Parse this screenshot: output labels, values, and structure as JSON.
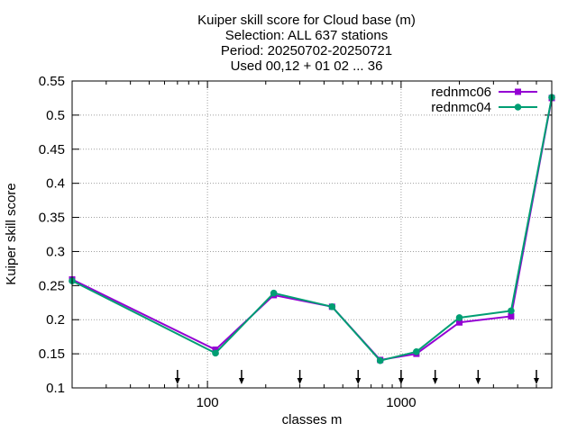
{
  "chart_data": {
    "type": "line",
    "title_lines": [
      "Kuiper skill score  for Cloud base (m)",
      "Selection: ALL    637 stations",
      "Period: 20250702-20250721",
      "Used 00,12 + 01 02 ... 36"
    ],
    "xlabel": "classes m",
    "ylabel": "Kuiper skill score",
    "x_scale": "log",
    "xlim": [
      20,
      6000
    ],
    "ylim": [
      0.1,
      0.55
    ],
    "x_ticks": [
      {
        "value": 100,
        "label": "100"
      },
      {
        "value": 1000,
        "label": "1000"
      }
    ],
    "y_ticks": [
      {
        "value": 0.1,
        "label": "0.1"
      },
      {
        "value": 0.15,
        "label": "0.15"
      },
      {
        "value": 0.2,
        "label": "0.2"
      },
      {
        "value": 0.25,
        "label": "0.25"
      },
      {
        "value": 0.3,
        "label": "0.3"
      },
      {
        "value": 0.35,
        "label": "0.35"
      },
      {
        "value": 0.4,
        "label": "0.4"
      },
      {
        "value": 0.45,
        "label": "0.45"
      },
      {
        "value": 0.5,
        "label": "0.5"
      },
      {
        "value": 0.55,
        "label": "0.55"
      }
    ],
    "grid": true,
    "legend_position": "top-right",
    "x": [
      20,
      110,
      220,
      440,
      780,
      1200,
      2000,
      3700,
      6000
    ],
    "series": [
      {
        "name": "rednmc06",
        "color": "#9400d3",
        "marker": "square",
        "values": [
          0.259,
          0.156,
          0.236,
          0.219,
          0.141,
          0.15,
          0.196,
          0.205,
          0.525
        ]
      },
      {
        "name": "rednmc04",
        "color": "#009e73",
        "marker": "circle",
        "values": [
          0.257,
          0.151,
          0.239,
          0.219,
          0.14,
          0.153,
          0.203,
          0.213,
          0.526
        ]
      }
    ],
    "arrow_markers_x": [
      70,
      150,
      300,
      600,
      1000,
      1500,
      2500,
      5000
    ]
  }
}
